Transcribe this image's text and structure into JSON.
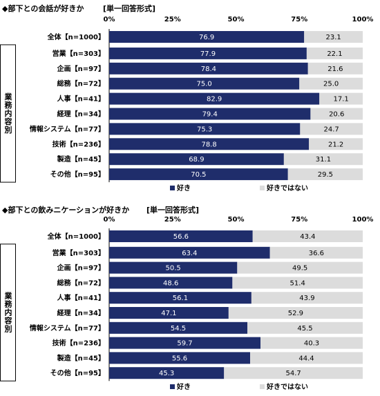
{
  "colors": {
    "like": "#1f2d6b",
    "dislike": "#dcdcdc"
  },
  "chart_data": [
    {
      "type": "bar",
      "title": "◆部下との会話が好きか",
      "subtitle": "[単一回答形式]",
      "x_ticks": [
        "0%",
        "25%",
        "50%",
        "75%",
        "100%"
      ],
      "xlim": [
        0,
        100
      ],
      "legend_position": "bottom",
      "group_label": "業務内容別",
      "categories": [
        "全体【n=1000】",
        "営業【n=303】",
        "企画【n=97】",
        "総務【n=72】",
        "人事【n=41】",
        "経理【n=34】",
        "情報システム【n=77】",
        "技術【n=236】",
        "製造【n=45】",
        "その他【n=95】"
      ],
      "series": [
        {
          "name": "好き",
          "values": [
            76.9,
            77.9,
            78.4,
            75.0,
            82.9,
            79.4,
            75.3,
            78.8,
            68.9,
            70.5
          ]
        },
        {
          "name": "好きではない",
          "values": [
            23.1,
            22.1,
            21.6,
            25.0,
            17.1,
            20.6,
            24.7,
            21.2,
            31.1,
            29.5
          ]
        }
      ]
    },
    {
      "type": "bar",
      "title": "◆部下との飲みニケーションが好きか",
      "subtitle": "[単一回答形式]",
      "x_ticks": [
        "0%",
        "25%",
        "50%",
        "75%",
        "100%"
      ],
      "xlim": [
        0,
        100
      ],
      "legend_position": "bottom",
      "group_label": "業務内容別",
      "categories": [
        "全体【n=1000】",
        "営業【n=303】",
        "企画【n=97】",
        "総務【n=72】",
        "人事【n=41】",
        "経理【n=34】",
        "情報システム【n=77】",
        "技術【n=236】",
        "製造【n=45】",
        "その他【n=95】"
      ],
      "series": [
        {
          "name": "好き",
          "values": [
            56.6,
            63.4,
            50.5,
            48.6,
            56.1,
            47.1,
            54.5,
            59.7,
            55.6,
            45.3
          ]
        },
        {
          "name": "好きではない",
          "values": [
            43.4,
            36.6,
            49.5,
            51.4,
            43.9,
            52.9,
            45.5,
            40.3,
            44.4,
            54.7
          ]
        }
      ]
    }
  ]
}
